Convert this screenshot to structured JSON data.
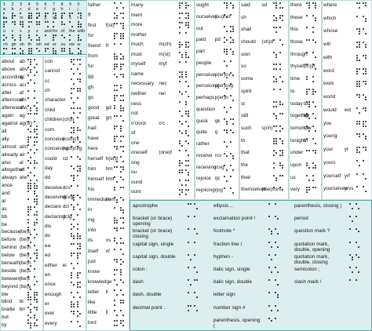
{
  "alphabet": {
    "digits": [
      "1",
      "2",
      "3",
      "4",
      "5",
      "6",
      "7",
      "8",
      "9",
      "0"
    ],
    "rows": [
      [
        "a",
        "b",
        "c",
        "d",
        "e",
        "f",
        "g",
        "h",
        "i",
        "j"
      ],
      [
        "k",
        "l",
        "m",
        "n",
        "o",
        "p",
        "q",
        "r",
        "s",
        "t"
      ],
      [
        "u",
        "v",
        "x",
        "y",
        "z",
        "and",
        "for",
        "of",
        "the",
        "with"
      ],
      [
        "ch",
        "gh",
        "sh",
        "th",
        "wh",
        "ed",
        "er",
        "ou",
        "ow",
        "w"
      ]
    ]
  },
  "columns": [
    [
      {
        "word": "about",
        "abbr": "ab"
      },
      {
        "word": "above",
        "abbr": "abv"
      },
      {
        "word": "according",
        "abbr": "ac"
      },
      {
        "word": "across",
        "abbr": "acr"
      },
      {
        "word": "after",
        "abbr": "af"
      },
      {
        "word": "afternoon",
        "abbr": "afn"
      },
      {
        "word": "afterward",
        "abbr": "afw"
      },
      {
        "word": "again",
        "abbr": "ag"
      },
      {
        "word": "against",
        "abbr": "ag(st)"
      },
      {
        "word": "all"
      },
      {
        "word": "ally"
      },
      {
        "word": "almost",
        "abbr": "alm"
      },
      {
        "word": "already",
        "abbr": "alr"
      },
      {
        "word": "also",
        "abbr": "al"
      },
      {
        "word": "altogether",
        "abbr": "alt"
      },
      {
        "word": "always",
        "abbr": "alw"
      },
      {
        "word": "ance"
      },
      {
        "word": "and"
      },
      {
        "word": "ar"
      },
      {
        "word": "as"
      },
      {
        "word": "bb"
      },
      {
        "word": "be"
      },
      {
        "word": "because",
        "abbr": "(be)c"
      },
      {
        "word": "before",
        "abbr": "(be)f"
      },
      {
        "word": "behind",
        "abbr": "(be)h"
      },
      {
        "word": "below",
        "abbr": "(be)l"
      },
      {
        "word": "beneath",
        "abbr": "(be)n"
      },
      {
        "word": "beside",
        "abbr": "(be)s"
      },
      {
        "word": "between",
        "abbr": "(be)t"
      },
      {
        "word": "beyond",
        "abbr": "(be)y"
      },
      {
        "word": "ble"
      },
      {
        "word": "blind",
        "abbr": "bl"
      },
      {
        "word": "braille",
        "abbr": "brl"
      },
      {
        "word": "but"
      },
      {
        "word": "by"
      }
    ],
    [
      {
        "word": "con"
      },
      {
        "word": "cannot"
      },
      {
        "word": "cc"
      },
      {
        "word": "ch"
      },
      {
        "word": "character"
      },
      {
        "word": "child"
      },
      {
        "word": "children",
        "abbr": "(ch)n"
      },
      {
        "word": "com"
      },
      {
        "word": "conceive",
        "abbr": "(con)cv"
      },
      {
        "word": "conceiving",
        "abbr": "(con)cvg"
      },
      {
        "word": "could",
        "abbr": "cd"
      },
      {
        "word": "day"
      },
      {
        "word": "dd"
      },
      {
        "word": "deceive",
        "abbr": "dcv"
      },
      {
        "word": "deceiving",
        "abbr": "dcvg"
      },
      {
        "word": "declare",
        "abbr": "dcl"
      },
      {
        "word": "declaring",
        "abbr": "dclg"
      },
      {
        "word": "dis"
      },
      {
        "word": "do"
      },
      {
        "word": "ea"
      },
      {
        "word": "ed"
      },
      {
        "word": "either",
        "abbr": "ei"
      },
      {
        "word": "en"
      },
      {
        "word": "ence"
      },
      {
        "word": "enough"
      },
      {
        "word": "er"
      },
      {
        "word": "ever"
      },
      {
        "word": "every"
      }
    ],
    [
      {
        "word": "father"
      },
      {
        "word": "ff"
      },
      {
        "word": "first",
        "abbr": "f(st)"
      },
      {
        "word": "for"
      },
      {
        "word": "friend",
        "abbr": "fr"
      },
      {
        "word": "from"
      },
      {
        "word": "ful"
      },
      {
        "word": "gg"
      },
      {
        "word": "gh"
      },
      {
        "word": "go"
      },
      {
        "word": "good",
        "abbr": "gd"
      },
      {
        "word": "great",
        "abbr": "grt"
      },
      {
        "word": "had"
      },
      {
        "word": "have"
      },
      {
        "word": "here"
      },
      {
        "word": "herself",
        "abbr": "h(er)f"
      },
      {
        "word": "him",
        "abbr": "hm"
      },
      {
        "word": "himself",
        "abbr": "hmf"
      },
      {
        "word": "his"
      },
      {
        "word": "immediate",
        "abbr": "imm"
      },
      {
        "word": "in"
      },
      {
        "word": "ing"
      },
      {
        "word": "into"
      },
      {
        "word": "its",
        "abbr": "xs"
      },
      {
        "word": "itself",
        "abbr": "xf"
      },
      {
        "word": "just"
      },
      {
        "word": "know"
      },
      {
        "word": "knowledge"
      },
      {
        "word": "letter",
        "abbr": "lr"
      },
      {
        "word": "like"
      },
      {
        "word": "little",
        "abbr": "ll"
      },
      {
        "word": "lord"
      }
    ],
    [
      {
        "word": "many"
      },
      {
        "word": "ment"
      },
      {
        "word": "more"
      },
      {
        "word": "mother"
      },
      {
        "word": "much",
        "abbr": "m(ch)"
      },
      {
        "word": "must",
        "abbr": "m(st)"
      },
      {
        "word": "myself",
        "abbr": "myf"
      },
      {
        "word": "name"
      },
      {
        "word": "necessary",
        "abbr": "nec"
      },
      {
        "word": "neither",
        "abbr": "nei"
      },
      {
        "word": "ness"
      },
      {
        "word": "not"
      },
      {
        "word": "o'clock",
        "abbr": "o'c"
      },
      {
        "word": "of"
      },
      {
        "word": "one"
      },
      {
        "word": "oneself",
        "abbr": "(one)f"
      },
      {
        "word": "ong"
      },
      {
        "word": "ou"
      },
      {
        "word": "ound"
      },
      {
        "word": "ount"
      }
    ],
    [
      {
        "word": "ought"
      },
      {
        "word": "ourselves",
        "abbr": "(ou)rvs"
      },
      {
        "word": "out"
      },
      {
        "word": "paid",
        "abbr": "pd"
      },
      {
        "word": "part"
      },
      {
        "word": "people"
      },
      {
        "word": "perceive",
        "abbr": "p(er)cv"
      },
      {
        "word": "perceiving",
        "abbr": "p(er)cvg"
      },
      {
        "word": "perhaps",
        "abbr": "p(er)h"
      },
      {
        "word": "question"
      },
      {
        "word": "quick",
        "abbr": "qk"
      },
      {
        "word": "quite",
        "abbr": "q"
      },
      {
        "word": "rather"
      },
      {
        "word": "receive",
        "abbr": "rcv"
      },
      {
        "word": "receiving",
        "abbr": "rcvg"
      },
      {
        "word": "rejoice",
        "abbr": "rjc"
      },
      {
        "word": "rejoicing",
        "abbr": "rjcg"
      }
    ],
    [
      {
        "word": "said",
        "abbr": "sd"
      },
      {
        "word": "sh"
      },
      {
        "word": "shall"
      },
      {
        "word": "should",
        "abbr": "(sh)d"
      },
      {
        "word": "sion"
      },
      {
        "word": "so"
      },
      {
        "word": "some"
      },
      {
        "word": "spirit"
      },
      {
        "word": "st"
      },
      {
        "word": "still"
      },
      {
        "word": "such",
        "abbr": "s(ch)"
      },
      {
        "word": "th"
      },
      {
        "word": "that"
      },
      {
        "word": "the"
      },
      {
        "word": "their"
      },
      {
        "word": "themselves",
        "abbr": "(the)mvs"
      }
    ],
    [
      {
        "word": "there"
      },
      {
        "word": "these"
      },
      {
        "word": "this"
      },
      {
        "word": "those"
      },
      {
        "word": "through"
      },
      {
        "word": "thyself",
        "abbr": "(th)yf"
      },
      {
        "word": "time"
      },
      {
        "word": "to"
      },
      {
        "word": "today",
        "abbr": "td"
      },
      {
        "word": "together",
        "abbr": "tgr"
      },
      {
        "word": "tomorrow",
        "abbr": "tm"
      },
      {
        "word": "tonight",
        "abbr": "tn"
      },
      {
        "word": "under"
      },
      {
        "word": "upon"
      },
      {
        "word": "us"
      },
      {
        "word": "very"
      }
    ],
    [
      {
        "word": "where"
      },
      {
        "word": "which"
      },
      {
        "word": "whose"
      },
      {
        "word": "will"
      },
      {
        "word": "with"
      },
      {
        "word": "word"
      },
      {
        "word": "work"
      },
      {
        "word": "world"
      },
      {
        "word": "would",
        "abbr": "wd"
      },
      {
        "word": "you"
      },
      {
        "word": "young"
      },
      {
        "word": "your",
        "abbr": "yr"
      },
      {
        "word": "yours"
      },
      {
        "word": "yourself",
        "abbr": "yrf"
      },
      {
        "word": "yourselves",
        "abbr": "yrvs"
      }
    ]
  ],
  "punctuation": [
    [
      "apostrophe",
      "bracket (or brace) opening",
      "bracket (or brace) closing",
      "capital sign, single",
      "capital sign, double",
      "colon :",
      "dash",
      "dash, double",
      "decimal point ."
    ],
    [
      "ellipsis ...",
      "exclamation point !",
      "footnote *",
      "fraction line /",
      "hyphen -",
      "italic sign, single",
      "italic sign, double",
      "letter sign",
      "number sign #",
      "parenthesis, opening ("
    ],
    [
      "parenthesis, closing )",
      "period",
      "question mark ?",
      "quotation mark, double, opening",
      "quotation mark, double, closing",
      "semicolon ;",
      "slash mark /"
    ]
  ]
}
